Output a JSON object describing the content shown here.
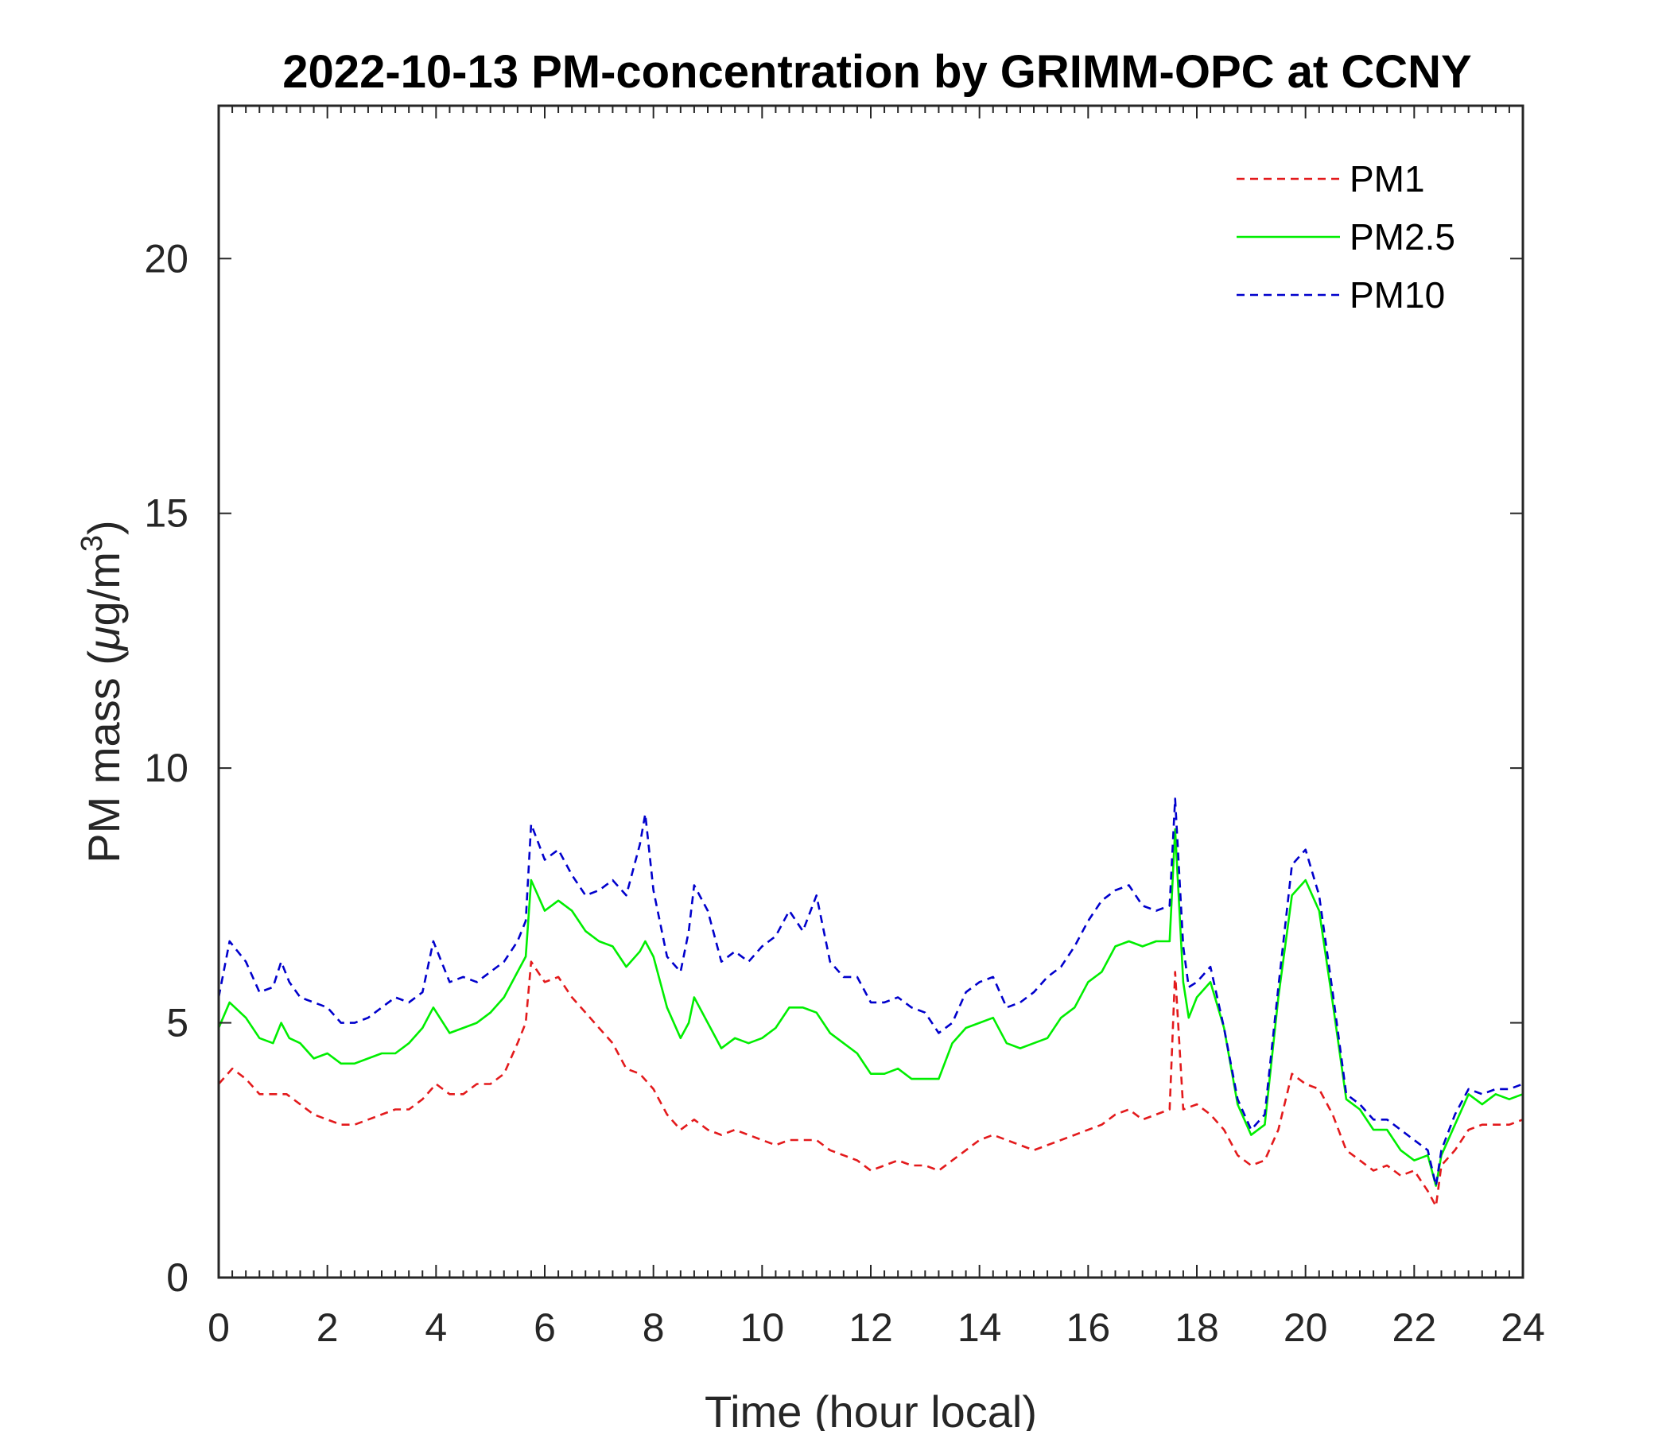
{
  "chart_data": {
    "type": "line",
    "title": "2022-10-13 PM-concentration by GRIMM-OPC at CCNY",
    "xlabel": "Time (hour local)",
    "ylabel_prefix": "PM mass (",
    "ylabel_mu": "μ",
    "ylabel_mid": "g/m",
    "ylabel_sup": "3",
    "ylabel_suffix": ")",
    "xlim": [
      0,
      24
    ],
    "ylim": [
      0,
      23
    ],
    "xticks": [
      0,
      2,
      4,
      6,
      8,
      10,
      12,
      14,
      16,
      18,
      20,
      22,
      24
    ],
    "yticks": [
      0,
      5,
      10,
      15,
      20
    ],
    "grid": false,
    "legend_position": "top-right",
    "series": [
      {
        "name": "PM1",
        "color": "#e31a1c",
        "style": "dashed",
        "x": [
          0,
          0.25,
          0.5,
          0.75,
          1,
          1.25,
          1.5,
          1.75,
          2,
          2.25,
          2.5,
          2.75,
          3,
          3.25,
          3.5,
          3.75,
          4,
          4.25,
          4.5,
          4.75,
          5,
          5.25,
          5.5,
          5.65,
          5.75,
          6,
          6.25,
          6.5,
          6.75,
          7,
          7.25,
          7.5,
          7.75,
          8,
          8.25,
          8.5,
          8.75,
          9,
          9.25,
          9.5,
          9.75,
          10,
          10.25,
          10.5,
          10.75,
          11,
          11.25,
          11.5,
          11.75,
          12,
          12.25,
          12.5,
          12.75,
          13,
          13.25,
          13.5,
          13.75,
          14,
          14.25,
          14.5,
          14.75,
          15,
          15.25,
          15.5,
          15.75,
          16,
          16.25,
          16.5,
          16.75,
          17,
          17.25,
          17.5,
          17.6,
          17.75,
          18,
          18.25,
          18.5,
          18.75,
          19,
          19.25,
          19.5,
          19.75,
          20,
          20.25,
          20.5,
          20.75,
          21,
          21.25,
          21.5,
          21.75,
          22,
          22.25,
          22.4,
          22.5,
          22.75,
          23,
          23.25,
          23.5,
          23.75,
          24
        ],
        "values": [
          3.8,
          4.1,
          3.9,
          3.6,
          3.6,
          3.6,
          3.4,
          3.2,
          3.1,
          3.0,
          3.0,
          3.1,
          3.2,
          3.3,
          3.3,
          3.5,
          3.8,
          3.6,
          3.6,
          3.8,
          3.8,
          4.0,
          4.6,
          5.0,
          6.2,
          5.8,
          5.9,
          5.5,
          5.2,
          4.9,
          4.6,
          4.1,
          4.0,
          3.7,
          3.2,
          2.9,
          3.1,
          2.9,
          2.8,
          2.9,
          2.8,
          2.7,
          2.6,
          2.7,
          2.7,
          2.7,
          2.5,
          2.4,
          2.3,
          2.1,
          2.2,
          2.3,
          2.2,
          2.2,
          2.1,
          2.3,
          2.5,
          2.7,
          2.8,
          2.7,
          2.6,
          2.5,
          2.6,
          2.7,
          2.8,
          2.9,
          3.0,
          3.2,
          3.3,
          3.1,
          3.2,
          3.3,
          6.0,
          3.3,
          3.4,
          3.2,
          2.9,
          2.4,
          2.2,
          2.3,
          2.9,
          4.0,
          3.8,
          3.7,
          3.2,
          2.5,
          2.3,
          2.1,
          2.2,
          2.0,
          2.1,
          1.7,
          1.4,
          2.2,
          2.5,
          2.9,
          3.0,
          3.0,
          3.0,
          3.1
        ]
      },
      {
        "name": "PM2.5",
        "color": "#00ee00",
        "style": "solid",
        "x": [
          0,
          0.2,
          0.5,
          0.75,
          1,
          1.15,
          1.3,
          1.5,
          1.75,
          2,
          2.25,
          2.5,
          2.75,
          3,
          3.25,
          3.5,
          3.75,
          3.95,
          4.25,
          4.5,
          4.75,
          5,
          5.25,
          5.5,
          5.65,
          5.75,
          6,
          6.25,
          6.5,
          6.75,
          7,
          7.25,
          7.5,
          7.75,
          7.85,
          8,
          8.25,
          8.5,
          8.65,
          8.75,
          9,
          9.25,
          9.5,
          9.75,
          10,
          10.25,
          10.5,
          10.75,
          11,
          11.25,
          11.5,
          11.75,
          12,
          12.25,
          12.5,
          12.75,
          13,
          13.25,
          13.5,
          13.75,
          14,
          14.25,
          14.5,
          14.75,
          15,
          15.25,
          15.5,
          15.75,
          16,
          16.25,
          16.5,
          16.75,
          17,
          17.25,
          17.5,
          17.6,
          17.75,
          17.85,
          18,
          18.25,
          18.5,
          18.75,
          19,
          19.25,
          19.5,
          19.75,
          20,
          20.25,
          20.5,
          20.75,
          21,
          21.25,
          21.5,
          21.75,
          22,
          22.25,
          22.4,
          22.5,
          22.75,
          23,
          23.25,
          23.5,
          23.75,
          24
        ],
        "values": [
          4.9,
          5.4,
          5.1,
          4.7,
          4.6,
          5.0,
          4.7,
          4.6,
          4.3,
          4.4,
          4.2,
          4.2,
          4.3,
          4.4,
          4.4,
          4.6,
          4.9,
          5.3,
          4.8,
          4.9,
          5.0,
          5.2,
          5.5,
          6.0,
          6.3,
          7.8,
          7.2,
          7.4,
          7.2,
          6.8,
          6.6,
          6.5,
          6.1,
          6.4,
          6.6,
          6.3,
          5.3,
          4.7,
          5.0,
          5.5,
          5.0,
          4.5,
          4.7,
          4.6,
          4.7,
          4.9,
          5.3,
          5.3,
          5.2,
          4.8,
          4.6,
          4.4,
          4.0,
          4.0,
          4.1,
          3.9,
          3.9,
          3.9,
          4.6,
          4.9,
          5.0,
          5.1,
          4.6,
          4.5,
          4.6,
          4.7,
          5.1,
          5.3,
          5.8,
          6.0,
          6.5,
          6.6,
          6.5,
          6.6,
          6.6,
          8.8,
          5.8,
          5.1,
          5.5,
          5.8,
          4.9,
          3.4,
          2.8,
          3.0,
          5.5,
          7.5,
          7.8,
          7.2,
          5.4,
          3.5,
          3.3,
          2.9,
          2.9,
          2.5,
          2.3,
          2.4,
          1.8,
          2.4,
          3.0,
          3.6,
          3.4,
          3.6,
          3.5,
          3.6
        ]
      },
      {
        "name": "PM10",
        "color": "#0000cc",
        "style": "dashed",
        "x": [
          0,
          0.2,
          0.5,
          0.75,
          1,
          1.15,
          1.3,
          1.5,
          1.75,
          2,
          2.25,
          2.5,
          2.75,
          3,
          3.25,
          3.5,
          3.75,
          3.95,
          4.25,
          4.5,
          4.75,
          5,
          5.25,
          5.5,
          5.65,
          5.75,
          6,
          6.25,
          6.5,
          6.75,
          7,
          7.25,
          7.5,
          7.75,
          7.85,
          8,
          8.25,
          8.5,
          8.65,
          8.75,
          9,
          9.25,
          9.5,
          9.75,
          10,
          10.25,
          10.5,
          10.75,
          11,
          11.25,
          11.5,
          11.75,
          12,
          12.25,
          12.5,
          12.75,
          13,
          13.25,
          13.5,
          13.75,
          14,
          14.25,
          14.5,
          14.75,
          15,
          15.25,
          15.5,
          15.75,
          16,
          16.25,
          16.5,
          16.75,
          17,
          17.25,
          17.5,
          17.6,
          17.75,
          17.85,
          18,
          18.25,
          18.5,
          18.75,
          19,
          19.25,
          19.5,
          19.75,
          20,
          20.25,
          20.5,
          20.75,
          21,
          21.25,
          21.5,
          21.75,
          22,
          22.25,
          22.4,
          22.5,
          22.75,
          23,
          23.25,
          23.5,
          23.75,
          24
        ],
        "values": [
          5.5,
          6.6,
          6.2,
          5.6,
          5.7,
          6.2,
          5.8,
          5.5,
          5.4,
          5.3,
          5.0,
          5.0,
          5.1,
          5.3,
          5.5,
          5.4,
          5.6,
          6.6,
          5.8,
          5.9,
          5.8,
          6.0,
          6.2,
          6.6,
          7.0,
          8.9,
          8.2,
          8.4,
          7.9,
          7.5,
          7.6,
          7.8,
          7.5,
          8.5,
          9.1,
          7.6,
          6.3,
          6.0,
          6.8,
          7.7,
          7.2,
          6.2,
          6.4,
          6.2,
          6.5,
          6.7,
          7.2,
          6.8,
          7.5,
          6.2,
          5.9,
          5.9,
          5.4,
          5.4,
          5.5,
          5.3,
          5.2,
          4.8,
          5.0,
          5.6,
          5.8,
          5.9,
          5.3,
          5.4,
          5.6,
          5.9,
          6.1,
          6.5,
          7.0,
          7.4,
          7.6,
          7.7,
          7.3,
          7.2,
          7.3,
          9.4,
          6.5,
          5.7,
          5.8,
          6.1,
          4.9,
          3.5,
          2.9,
          3.2,
          5.7,
          8.1,
          8.4,
          7.5,
          5.6,
          3.6,
          3.4,
          3.1,
          3.1,
          2.9,
          2.7,
          2.5,
          1.8,
          2.5,
          3.2,
          3.7,
          3.6,
          3.7,
          3.7,
          3.8
        ]
      }
    ]
  }
}
